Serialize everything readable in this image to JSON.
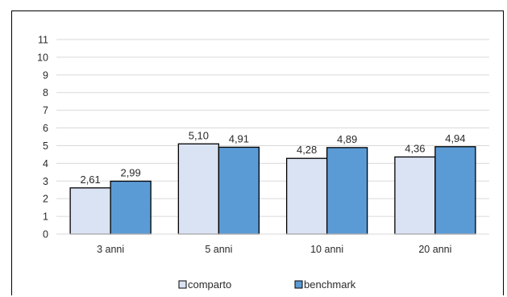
{
  "chart_data": {
    "type": "bar",
    "categories": [
      "3 anni",
      "5 anni",
      "10 anni",
      "20 anni"
    ],
    "series": [
      {
        "name": "comparto",
        "values": [
          2.61,
          5.1,
          4.28,
          4.36
        ],
        "labels": [
          "2,61",
          "5,10",
          "4,28",
          "4,36"
        ],
        "color": "#dae3f3"
      },
      {
        "name": "benchmark",
        "values": [
          2.99,
          4.91,
          4.89,
          4.94
        ],
        "labels": [
          "2,99",
          "4,91",
          "4,89",
          "4,94"
        ],
        "color": "#5b9bd5"
      }
    ],
    "ylim": [
      0,
      11
    ],
    "yticks": [
      0,
      1,
      2,
      3,
      4,
      5,
      6,
      7,
      8,
      9,
      10,
      11
    ],
    "grid": true,
    "legend": "bottom",
    "title": "",
    "xlabel": "",
    "ylabel": ""
  }
}
